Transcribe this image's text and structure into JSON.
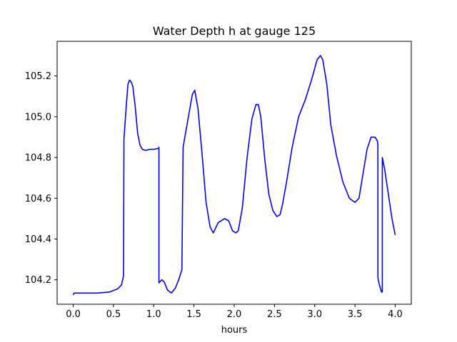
{
  "chart_data": {
    "type": "line",
    "title": "Water Depth h at gauge 125",
    "xlabel": "hours",
    "ylabel": "",
    "xlim": [
      -0.2,
      4.2
    ],
    "ylim": [
      104.08,
      105.37
    ],
    "xticks": [
      0.0,
      0.5,
      1.0,
      1.5,
      2.0,
      2.5,
      3.0,
      3.5,
      4.0
    ],
    "xtick_labels": [
      "0.0",
      "0.5",
      "1.0",
      "1.5",
      "2.0",
      "2.5",
      "3.0",
      "3.5",
      "4.0"
    ],
    "yticks": [
      104.2,
      104.4,
      104.6,
      104.8,
      105.0,
      105.2
    ],
    "ytick_labels": [
      "104.2",
      "104.4",
      "104.6",
      "104.8",
      "105.0",
      "105.2"
    ],
    "grid": false,
    "line_color": "#0000ff",
    "series": [
      {
        "name": "",
        "x": [
          0.0,
          0.01,
          0.1,
          0.3,
          0.45,
          0.55,
          0.6,
          0.625,
          0.63,
          0.63,
          0.66,
          0.68,
          0.7,
          0.72,
          0.74,
          0.77,
          0.8,
          0.83,
          0.86,
          0.9,
          0.95,
          1.0,
          1.06,
          1.065,
          1.065,
          1.1,
          1.13,
          1.17,
          1.22,
          1.27,
          1.31,
          1.35,
          1.365,
          1.365,
          1.4,
          1.44,
          1.48,
          1.51,
          1.55,
          1.6,
          1.65,
          1.7,
          1.74,
          1.8,
          1.88,
          1.93,
          1.98,
          2.02,
          2.05,
          2.1,
          2.16,
          2.22,
          2.27,
          2.3,
          2.33,
          2.38,
          2.43,
          2.48,
          2.53,
          2.57,
          2.6,
          2.65,
          2.72,
          2.8,
          2.88,
          2.96,
          3.03,
          3.07,
          3.1,
          3.15,
          3.2,
          3.27,
          3.35,
          3.43,
          3.5,
          3.55,
          3.6,
          3.65,
          3.7,
          3.75,
          3.78,
          3.785,
          3.785,
          3.8,
          3.83,
          3.84,
          3.84,
          3.87,
          3.9,
          3.93,
          3.96,
          4.0
        ],
        "y": [
          104.125,
          104.135,
          104.135,
          104.135,
          104.14,
          104.155,
          104.175,
          104.22,
          104.89,
          104.89,
          105.06,
          105.16,
          105.18,
          105.17,
          105.15,
          105.05,
          104.92,
          104.86,
          104.84,
          104.835,
          104.84,
          104.84,
          104.845,
          104.85,
          104.185,
          104.2,
          104.19,
          104.15,
          104.135,
          104.16,
          104.2,
          104.25,
          104.85,
          104.85,
          104.93,
          105.02,
          105.11,
          105.13,
          105.04,
          104.82,
          104.58,
          104.46,
          104.43,
          104.48,
          104.5,
          104.49,
          104.44,
          104.43,
          104.44,
          104.55,
          104.8,
          104.99,
          105.06,
          105.06,
          105.0,
          104.79,
          104.62,
          104.54,
          104.51,
          104.52,
          104.57,
          104.68,
          104.85,
          105.0,
          105.08,
          105.18,
          105.28,
          105.3,
          105.28,
          105.16,
          104.96,
          104.81,
          104.68,
          104.6,
          104.58,
          104.6,
          104.72,
          104.84,
          104.9,
          104.9,
          104.88,
          104.86,
          104.21,
          104.18,
          104.14,
          104.14,
          104.8,
          104.74,
          104.66,
          104.58,
          104.5,
          104.42
        ]
      }
    ]
  }
}
